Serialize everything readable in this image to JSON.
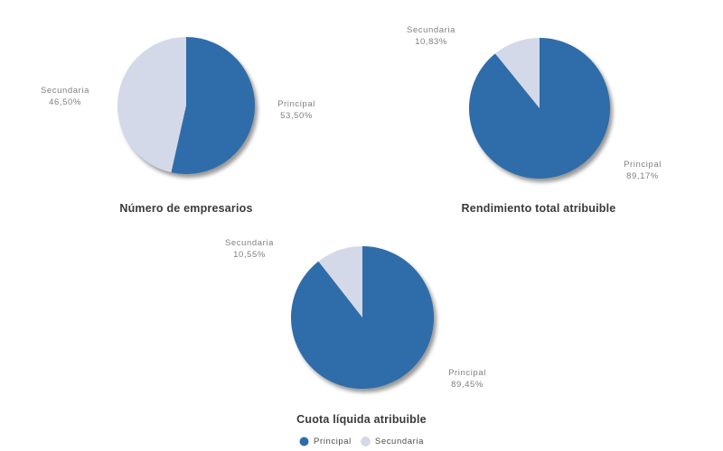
{
  "page": {
    "background": "#ffffff"
  },
  "colors": {
    "principal": "#2E6DA9",
    "secundaria": "#D4D9E9",
    "label_text": "#7F7F7F",
    "title_text": "#3A3A3A",
    "legend_text": "#4C4C4C",
    "shadow": "#808080"
  },
  "legend": {
    "items": [
      {
        "label": "Principal",
        "color": "#2E6DA9"
      },
      {
        "label": "Secundaria",
        "color": "#D4D9E9"
      }
    ]
  },
  "chart_data": [
    {
      "type": "pie",
      "title": "Número de empresarios",
      "start_angle_deg": -90,
      "direction": "clockwise",
      "slices": [
        {
          "label": "Principal",
          "value": 53.5,
          "value_text": "53,50%",
          "color": "#2E6DA9"
        },
        {
          "label": "Secundaria",
          "value": 46.5,
          "value_text": "46,50%",
          "color": "#D4D9E9"
        }
      ]
    },
    {
      "type": "pie",
      "title": "Rendimiento total atribuible",
      "start_angle_deg": -90,
      "direction": "clockwise",
      "slices": [
        {
          "label": "Principal",
          "value": 89.17,
          "value_text": "89,17%",
          "color": "#2E6DA9"
        },
        {
          "label": "Secundaria",
          "value": 10.83,
          "value_text": "10,83%",
          "color": "#D4D9E9"
        }
      ]
    },
    {
      "type": "pie",
      "title": "Cuota líquida atribuible",
      "start_angle_deg": -90,
      "direction": "clockwise",
      "slices": [
        {
          "label": "Principal",
          "value": 89.45,
          "value_text": "89,45%",
          "color": "#2E6DA9"
        },
        {
          "label": "Secundaria",
          "value": 10.55,
          "value_text": "10,55%",
          "color": "#D4D9E9"
        }
      ]
    }
  ]
}
